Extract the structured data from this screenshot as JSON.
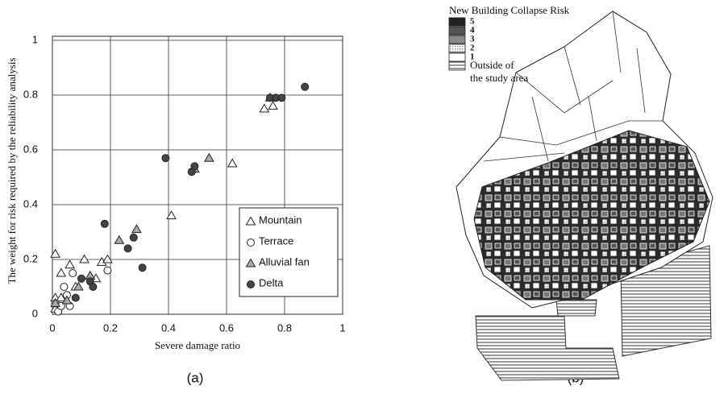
{
  "chart_data": {
    "type": "scatter",
    "xlabel": "Severe damage ratio",
    "ylabel": "The weight for risk required by the reliability analysis",
    "xlim": [
      0,
      1
    ],
    "ylim": [
      0,
      1
    ],
    "xticks": [
      0,
      0.2,
      0.4,
      0.6,
      0.8,
      1
    ],
    "yticks": [
      0,
      0.2,
      0.4,
      0.6,
      0.8,
      1
    ],
    "grid": true,
    "legend": "lower right",
    "series": [
      {
        "name": "Mountain",
        "marker": "triangle",
        "color": "#ffffff",
        "x": [
          0.01,
          0.01,
          0.03,
          0.03,
          0.06,
          0.11,
          0.08,
          0.17,
          0.19,
          0.15,
          0.41,
          0.62,
          0.73,
          0.76,
          0.01
        ],
        "values": [
          0.22,
          0.06,
          0.06,
          0.15,
          0.18,
          0.2,
          0.1,
          0.19,
          0.2,
          0.13,
          0.36,
          0.55,
          0.75,
          0.76,
          0.02
        ]
      },
      {
        "name": "Terrace",
        "marker": "circle",
        "color": "#ffffff",
        "x": [
          0.02,
          0.03,
          0.04,
          0.06,
          0.05,
          0.19,
          0.01,
          0.07
        ],
        "values": [
          0.01,
          0.03,
          0.1,
          0.03,
          0.07,
          0.16,
          0.04,
          0.15
        ]
      },
      {
        "name": "Alluvial fan",
        "marker": "triangle",
        "color": "#aaaaaa",
        "x": [
          0.23,
          0.29,
          0.54,
          0.49,
          0.75,
          0.09,
          0.13,
          0.01,
          0.05
        ],
        "values": [
          0.27,
          0.31,
          0.57,
          0.53,
          0.79,
          0.1,
          0.14,
          0.04,
          0.05
        ]
      },
      {
        "name": "Delta",
        "marker": "circle",
        "color": "#444444",
        "x": [
          0.18,
          0.39,
          0.48,
          0.49,
          0.75,
          0.77,
          0.79,
          0.87,
          0.26,
          0.28,
          0.31,
          0.1,
          0.13,
          0.14,
          0.08
        ],
        "values": [
          0.33,
          0.57,
          0.52,
          0.54,
          0.79,
          0.79,
          0.79,
          0.83,
          0.24,
          0.28,
          0.17,
          0.13,
          0.12,
          0.1,
          0.06
        ]
      }
    ]
  },
  "captions": [
    "(a)",
    "(b)"
  ],
  "map": {
    "legend_title": "New Building Collapse Risk",
    "levels": [
      "5",
      "4",
      "3",
      "2",
      "1"
    ],
    "outside_label": [
      "Outside of",
      "the study area"
    ]
  }
}
